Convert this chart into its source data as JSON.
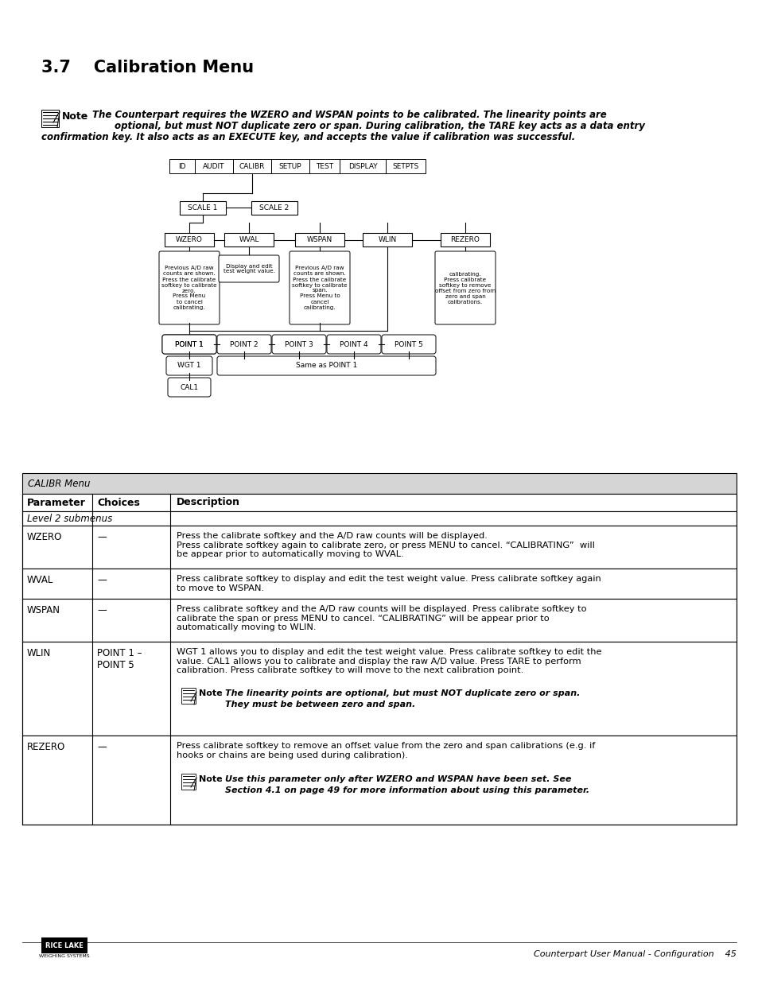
{
  "title": "3.7    Calibration Menu",
  "table_header": "CALIBR Menu",
  "col_headers": [
    "Parameter",
    "Choices",
    "Description"
  ],
  "level2_label": "Level 2 submenus",
  "menu_items": [
    "ID",
    "AUDIT",
    "CALIBR",
    "SETUP",
    "TEST",
    "DISPLAY",
    "SETPTS"
  ],
  "wzero_box_text": "Previous A/D raw\ncounts are shown.\nPress the calibrate\nsoftkey to calibrate\nzero.\nPress Menu\nto cancel\ncalibrating.",
  "wval_box_text": "Display and edit\ntest weight value.",
  "wspan_box_text": "Previous A/D raw\ncounts are shown.\nPress the calibrate\nsoftkey to calibrate\nspan.\nPress Menu to\ncancel\ncalibrating.",
  "rezero_box_text": "calibrating.\nPress calibrate\nsoftkey to remove\noffset from zero from\nzero and span\ncalibrations.",
  "wzero_desc": "Press the calibrate softkey and the A/D raw counts will be displayed.\nPress calibrate softkey again to calibrate zero, or press MENU to cancel. “CALIBRATING”  will\nbe appear prior to automatically moving to WVAL.",
  "wval_desc": "Press calibrate softkey to display and edit the test weight value. Press calibrate softkey again\nto move to WSPAN.",
  "wspan_desc": "Press calibrate softkey and the A/D raw counts will be displayed. Press calibrate softkey to\ncalibrate the span or press MENU to cancel. “CALIBRATING” will be appear prior to\nautomatically moving to WLIN.",
  "wlin_desc": "WGT 1 allows you to display and edit the test weight value. Press calibrate softkey to edit the\nvalue. CAL1 allows you to calibrate and display the raw A/D value. Press TARE to perform\ncalibration. Press calibrate softkey to will move to the next calibration point.",
  "wlin_note1": "The linearity points are optional, but must NOT duplicate zero or span.",
  "wlin_note2": "They must be between zero and span.",
  "rezero_desc": "Press calibrate softkey to remove an offset value from the zero and span calibrations (e.g. if\nhooks or chains are being used during calibration).",
  "rezero_note1": "Use this parameter only after WZERO and WSPAN have been set. See",
  "rezero_note2": "Section 4.1 on page 49 for more information about using this parameter.",
  "footer_right": "Counterpart User Manual - Configuration",
  "footer_page": "45",
  "bg_color": "#ffffff"
}
